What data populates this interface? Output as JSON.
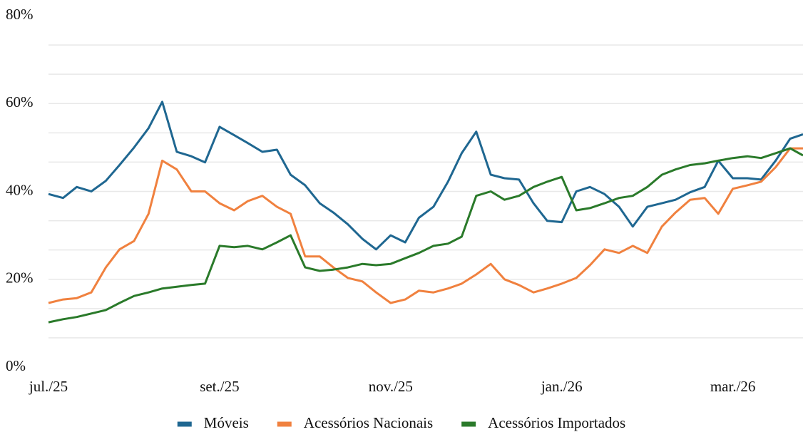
{
  "chart_data": {
    "type": "line",
    "x": [
      0,
      0.17,
      0.33,
      0.5,
      0.67,
      0.83,
      1,
      1.17,
      1.33,
      1.5,
      1.67,
      1.83,
      2,
      2.17,
      2.33,
      2.5,
      2.67,
      2.83,
      3,
      3.17,
      3.33,
      3.5,
      3.67,
      3.83,
      4,
      4.17,
      4.33,
      4.5,
      4.67,
      4.83,
      5,
      5.17,
      5.33,
      5.5,
      5.67,
      5.83,
      6,
      6.17,
      6.33,
      6.5,
      6.67,
      6.83,
      7,
      7.17,
      7.33,
      7.5,
      7.67,
      7.83,
      8,
      8.17,
      8.33,
      8.5,
      8.67,
      8.82
    ],
    "series": [
      {
        "name": "Móveis",
        "color": "#1f6791",
        "values": [
          39.4,
          38.5,
          41,
          40,
          42.4,
          46,
          50,
          54.4,
          60.4,
          49,
          48,
          46.6,
          54.7,
          52.8,
          51,
          49,
          49.5,
          43.8,
          41.4,
          37.3,
          35.2,
          32.5,
          29.2,
          26.8,
          30,
          28.4,
          34,
          36.5,
          42.2,
          48.7,
          53.6,
          43.8,
          43,
          42.7,
          37.3,
          33.3,
          33,
          40,
          41,
          39.4,
          36.5,
          32,
          36.5,
          37.3,
          38.1,
          39.8,
          41,
          47,
          43,
          43,
          42.7,
          47,
          52,
          53
        ]
      },
      {
        "name": "Acessórios Nacionais",
        "color": "#f0813f",
        "values": [
          14.6,
          15.4,
          15.7,
          17,
          22.7,
          26.8,
          28.7,
          34.9,
          47,
          45,
          40,
          40,
          37.3,
          35.7,
          37.8,
          39,
          36.5,
          34.9,
          25.2,
          25.2,
          22.7,
          20.3,
          19.5,
          17,
          14.6,
          15.4,
          17.4,
          17,
          17.9,
          19,
          21.1,
          23.5,
          20,
          18.7,
          17,
          17.9,
          19,
          20.3,
          23.2,
          26.8,
          26,
          27.6,
          26,
          32,
          35.2,
          38.1,
          38.5,
          34.9,
          40.6,
          41.4,
          42.2,
          45.5,
          49.8,
          49.8
        ]
      },
      {
        "name": "Acessórios Importados",
        "color": "#2a7a2a",
        "values": [
          10.2,
          10.9,
          11.4,
          12.2,
          13,
          14.6,
          16.2,
          17,
          17.9,
          18.3,
          18.7,
          19,
          27.6,
          27.3,
          27.6,
          26.8,
          28.4,
          30,
          22.7,
          21.9,
          22.2,
          22.7,
          23.5,
          23.2,
          23.5,
          24.8,
          26,
          27.6,
          28.1,
          29.7,
          39,
          40,
          38.1,
          39,
          41,
          42.2,
          43.3,
          35.7,
          36.2,
          37.3,
          38.5,
          39,
          41,
          43.8,
          45,
          46,
          46.4,
          47,
          47.6,
          48,
          47.6,
          48.7,
          49.8,
          48.2
        ]
      }
    ],
    "xlim": [
      0,
      8.82
    ],
    "xticks": [
      {
        "value": 0,
        "label": "jul./25"
      },
      {
        "value": 2,
        "label": "set./25"
      },
      {
        "value": 4,
        "label": "nov./25"
      },
      {
        "value": 6,
        "label": "jan./26"
      },
      {
        "value": 8,
        "label": "mar./26"
      }
    ],
    "ylim": [
      0,
      80
    ],
    "yticks": [
      {
        "value": 0,
        "label": "0%"
      },
      {
        "value": 20,
        "label": "20%"
      },
      {
        "value": 40,
        "label": "40%"
      },
      {
        "value": 60,
        "label": "60%"
      },
      {
        "value": 80,
        "label": "80%"
      }
    ],
    "grid_y": [
      6.67,
      13.33,
      20,
      26.67,
      33.33,
      40,
      46.67,
      53.33,
      60,
      66.67,
      73.33
    ],
    "legend": "bottom"
  }
}
